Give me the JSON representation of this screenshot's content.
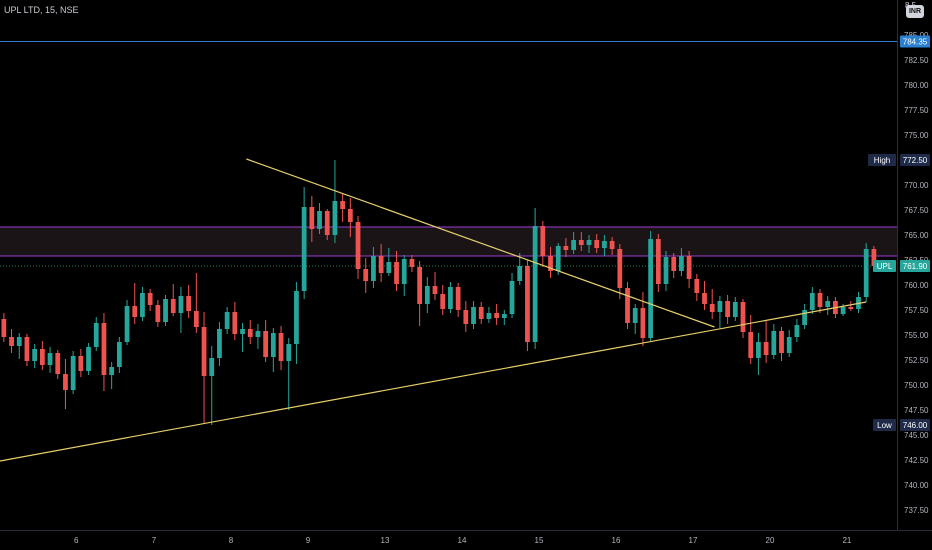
{
  "header": {
    "symbol": "UPL LTD, 15, NSE",
    "currency_badge": "INR",
    "top_price_partial": "8 5"
  },
  "colors": {
    "background": "#000000",
    "up": "#26a69a",
    "down": "#ef5350",
    "trendline": "#e6cf6b",
    "level_784": "#2a7fd1",
    "zone_border": "#9c3bd6",
    "current_line": "#1d8a5a",
    "axis_text": "#b2b5be",
    "badge_high_low": "#1e2a48",
    "badge_upl": "#26a69a",
    "badge_784": "#2a7fd1"
  },
  "chart_data": {
    "type": "candlestick",
    "symbol": "UPL LTD",
    "interval": "15",
    "exchange": "NSE",
    "y_axis": {
      "range": [
        735.5,
        788.5
      ],
      "ticks": [
        "737.50",
        "740.00",
        "742.50",
        "745.00",
        "747.50",
        "750.00",
        "752.50",
        "755.00",
        "757.50",
        "760.00",
        "762.50",
        "765.00",
        "767.50",
        "770.00",
        "772.50",
        "775.00",
        "777.50",
        "780.00",
        "782.50",
        "785.00"
      ]
    },
    "x_axis": {
      "ticks": [
        {
          "label": "6",
          "i": 9.4
        },
        {
          "label": "7",
          "i": 19.5
        },
        {
          "label": "8",
          "i": 29.5
        },
        {
          "label": "9",
          "i": 39.5
        },
        {
          "label": "13",
          "i": 49.5
        },
        {
          "label": "14",
          "i": 59.5
        },
        {
          "label": "15",
          "i": 69.5
        },
        {
          "label": "16",
          "i": 79.5
        },
        {
          "label": "17",
          "i": 89.5
        },
        {
          "label": "20",
          "i": 99.5
        },
        {
          "label": "21",
          "i": 109.5
        }
      ],
      "index_range": [
        -0.5,
        116
      ]
    },
    "candles": [
      [
        756.6,
        757.2,
        754.3,
        754.8
      ],
      [
        754.8,
        755.6,
        753.2,
        753.9
      ],
      [
        753.9,
        755.2,
        752.6,
        754.8
      ],
      [
        754.8,
        755.1,
        751.9,
        752.4
      ],
      [
        752.4,
        754.1,
        751.7,
        753.6
      ],
      [
        753.6,
        754.4,
        751.5,
        752.0
      ],
      [
        752.0,
        753.8,
        751.2,
        753.2
      ],
      [
        753.2,
        753.5,
        750.6,
        751.1
      ],
      [
        751.1,
        752.6,
        747.6,
        749.5
      ],
      [
        749.5,
        753.4,
        749.1,
        752.9
      ],
      [
        752.9,
        753.6,
        750.8,
        751.4
      ],
      [
        751.4,
        754.2,
        751.0,
        753.8
      ],
      [
        753.8,
        756.8,
        753.4,
        756.2
      ],
      [
        756.2,
        757.2,
        749.4,
        751.0
      ],
      [
        751.0,
        752.3,
        749.6,
        751.8
      ],
      [
        751.8,
        754.8,
        751.2,
        754.3
      ],
      [
        754.3,
        758.5,
        754.0,
        757.9
      ],
      [
        757.9,
        760.2,
        756.1,
        756.8
      ],
      [
        756.8,
        759.8,
        756.4,
        759.2
      ],
      [
        759.2,
        759.6,
        757.4,
        758.0
      ],
      [
        758.0,
        758.5,
        755.8,
        756.3
      ],
      [
        756.3,
        759.0,
        755.9,
        758.6
      ],
      [
        758.6,
        760.1,
        756.9,
        757.2
      ],
      [
        757.2,
        759.8,
        755.2,
        758.9
      ],
      [
        758.9,
        760.0,
        756.7,
        757.4
      ],
      [
        757.4,
        761.2,
        755.2,
        755.8
      ],
      [
        755.8,
        757.3,
        746.2,
        750.9
      ],
      [
        750.9,
        753.9,
        746.0,
        752.7
      ],
      [
        752.7,
        756.3,
        751.9,
        755.6
      ],
      [
        755.6,
        757.8,
        755.1,
        757.3
      ],
      [
        757.3,
        758.3,
        754.5,
        755.1
      ],
      [
        755.1,
        756.2,
        753.3,
        755.6
      ],
      [
        755.6,
        756.5,
        754.1,
        754.8
      ],
      [
        754.8,
        756.1,
        753.6,
        755.4
      ],
      [
        755.4,
        756.5,
        752.3,
        752.8
      ],
      [
        752.8,
        755.7,
        751.3,
        755.2
      ],
      [
        755.2,
        755.9,
        751.5,
        752.4
      ],
      [
        752.4,
        754.7,
        747.5,
        754.1
      ],
      [
        754.1,
        760.3,
        752.1,
        759.4
      ],
      [
        759.4,
        769.8,
        758.6,
        767.8
      ],
      [
        767.8,
        768.9,
        764.3,
        765.6
      ],
      [
        765.6,
        768.2,
        765.1,
        767.4
      ],
      [
        767.4,
        767.6,
        764.5,
        765.0
      ],
      [
        765.0,
        772.5,
        764.2,
        768.4
      ],
      [
        768.4,
        769.1,
        766.3,
        767.6
      ],
      [
        767.6,
        768.7,
        764.8,
        766.3
      ],
      [
        766.3,
        766.9,
        760.6,
        761.6
      ],
      [
        761.6,
        762.7,
        759.2,
        760.4
      ],
      [
        760.4,
        763.8,
        759.7,
        762.9
      ],
      [
        762.9,
        764.1,
        760.3,
        761.2
      ],
      [
        761.2,
        763.7,
        760.9,
        762.3
      ],
      [
        762.3,
        763.4,
        759.4,
        760.1
      ],
      [
        760.1,
        763.0,
        758.9,
        762.6
      ],
      [
        762.6,
        763.0,
        761.3,
        761.8
      ],
      [
        761.8,
        762.4,
        755.9,
        758.1
      ],
      [
        758.1,
        760.8,
        757.2,
        759.9
      ],
      [
        759.9,
        761.3,
        758.5,
        759.1
      ],
      [
        759.1,
        760.0,
        757.0,
        757.6
      ],
      [
        757.6,
        760.3,
        757.2,
        759.8
      ],
      [
        759.8,
        760.2,
        756.8,
        757.5
      ],
      [
        757.5,
        758.4,
        755.3,
        756.1
      ],
      [
        756.1,
        758.4,
        755.6,
        757.8
      ],
      [
        757.8,
        758.3,
        756.1,
        756.6
      ],
      [
        756.6,
        757.8,
        756.2,
        757.2
      ],
      [
        757.2,
        758.1,
        756.0,
        756.7
      ],
      [
        756.7,
        757.5,
        756.0,
        757.1
      ],
      [
        757.1,
        761.2,
        756.7,
        760.4
      ],
      [
        760.4,
        763.2,
        760.0,
        761.9
      ],
      [
        761.9,
        762.5,
        753.4,
        754.3
      ],
      [
        754.3,
        767.7,
        753.6,
        765.9
      ],
      [
        765.9,
        766.4,
        761.8,
        762.9
      ],
      [
        762.9,
        763.8,
        760.7,
        761.4
      ],
      [
        761.4,
        764.2,
        761.0,
        763.9
      ],
      [
        763.9,
        764.7,
        762.8,
        763.5
      ],
      [
        763.5,
        765.3,
        763.1,
        764.5
      ],
      [
        764.5,
        765.3,
        763.4,
        764.0
      ],
      [
        764.0,
        765.0,
        763.2,
        764.5
      ],
      [
        764.5,
        765.1,
        763.2,
        763.7
      ],
      [
        763.7,
        765.0,
        762.9,
        764.4
      ],
      [
        764.4,
        764.8,
        763.0,
        763.6
      ],
      [
        763.6,
        764.1,
        758.6,
        759.7
      ],
      [
        759.7,
        760.3,
        755.6,
        756.2
      ],
      [
        756.2,
        758.1,
        755.1,
        757.7
      ],
      [
        757.7,
        759.3,
        753.9,
        754.7
      ],
      [
        754.7,
        765.4,
        754.3,
        764.6
      ],
      [
        764.6,
        765.1,
        759.3,
        760.1
      ],
      [
        760.1,
        763.4,
        759.4,
        762.8
      ],
      [
        762.8,
        763.2,
        760.7,
        761.4
      ],
      [
        761.4,
        763.7,
        760.9,
        762.9
      ],
      [
        762.9,
        763.4,
        759.7,
        760.6
      ],
      [
        760.6,
        761.1,
        758.4,
        759.2
      ],
      [
        759.2,
        760.4,
        757.5,
        758.1
      ],
      [
        758.1,
        759.6,
        756.6,
        757.3
      ],
      [
        757.3,
        758.9,
        755.7,
        758.4
      ],
      [
        758.4,
        759.0,
        756.1,
        756.8
      ],
      [
        756.8,
        758.8,
        756.4,
        758.3
      ],
      [
        758.3,
        758.6,
        754.7,
        755.3
      ],
      [
        755.3,
        757.0,
        752.1,
        752.7
      ],
      [
        752.7,
        755.2,
        751.0,
        754.3
      ],
      [
        754.3,
        756.4,
        752.2,
        753.0
      ],
      [
        753.0,
        756.1,
        752.6,
        755.4
      ],
      [
        755.4,
        755.8,
        752.4,
        753.2
      ],
      [
        753.2,
        755.5,
        752.8,
        754.8
      ],
      [
        754.8,
        756.6,
        754.3,
        756.0
      ],
      [
        756.0,
        758.1,
        755.6,
        757.5
      ],
      [
        757.5,
        759.8,
        757.1,
        759.2
      ],
      [
        759.2,
        759.6,
        757.2,
        757.8
      ],
      [
        757.8,
        758.9,
        757.0,
        758.4
      ],
      [
        758.4,
        758.8,
        756.7,
        757.1
      ],
      [
        757.1,
        758.1,
        756.9,
        757.8
      ],
      [
        757.8,
        758.4,
        757.4,
        757.6
      ],
      [
        757.6,
        759.3,
        757.2,
        758.8
      ],
      [
        758.8,
        764.2,
        758.3,
        763.6
      ],
      [
        763.6,
        763.9,
        761.4,
        761.9
      ]
    ],
    "trendlines": [
      {
        "name": "resistance",
        "from": {
          "i": 31.5,
          "y": 772.6
        },
        "to": {
          "i": 92.3,
          "y": 755.8
        }
      },
      {
        "name": "support",
        "from": {
          "i": -0.5,
          "y": 742.4
        },
        "to": {
          "i": 112.0,
          "y": 758.3
        }
      }
    ],
    "horizontal_lines": [
      {
        "name": "level-784",
        "y": 784.35
      },
      {
        "name": "current",
        "y": 761.9
      }
    ],
    "zone": {
      "top": 765.8,
      "bottom": 762.9
    },
    "price_badges": [
      {
        "name": "level-784",
        "label": "",
        "value": "784.35",
        "y": 784.35
      },
      {
        "name": "high",
        "label": "High",
        "value": "772.50",
        "y": 772.5
      },
      {
        "name": "upl",
        "label": "UPL",
        "value": "761.90",
        "y": 761.9
      },
      {
        "name": "low",
        "label": "Low",
        "value": "746.00",
        "y": 746.0
      }
    ]
  }
}
